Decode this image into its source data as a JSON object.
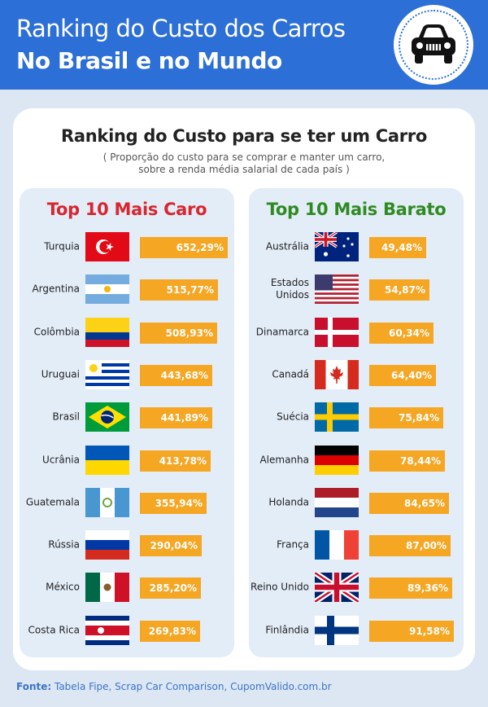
{
  "header": {
    "title_line1": "Ranking do Custo dos Carros",
    "title_line2": "No Brasil e no Mundo",
    "badge_icon": "car-front-icon"
  },
  "card": {
    "title": "Ranking do Custo para se ter um Carro",
    "subtitle_line1": "( Proporção do custo para se comprar e manter um carro,",
    "subtitle_line2": "sobre a renda média salarial de cada país )"
  },
  "chart_data": [
    {
      "type": "bar",
      "title": "Top 10 Mais Caro",
      "title_color": "#d7262f",
      "bar_color": "#f5a623",
      "categories": [
        "Turquia",
        "Argentina",
        "Colômbia",
        "Uruguai",
        "Brasil",
        "Ucrânia",
        "Guatemala",
        "Rússia",
        "México",
        "Costa Rica"
      ],
      "values": [
        652.29,
        515.77,
        508.93,
        443.68,
        441.89,
        413.78,
        355.94,
        290.04,
        285.2,
        269.83
      ],
      "labels": [
        "652,29%",
        "515,77%",
        "508,93%",
        "443,68%",
        "441,89%",
        "413,78%",
        "355,94%",
        "290,04%",
        "285,20%",
        "269,83%"
      ],
      "flags": [
        "turkey-flag-icon",
        "argentina-flag-icon",
        "colombia-flag-icon",
        "uruguay-flag-icon",
        "brazil-flag-icon",
        "ukraine-flag-icon",
        "guatemala-flag-icon",
        "russia-flag-icon",
        "mexico-flag-icon",
        "costa-rica-flag-icon"
      ]
    },
    {
      "type": "bar",
      "title": "Top 10 Mais Barato",
      "title_color": "#2f8a22",
      "bar_color": "#f5a623",
      "categories": [
        "Austrália",
        "Estados Unidos",
        "Dinamarca",
        "Canadá",
        "Suécia",
        "Alemanha",
        "Holanda",
        "França",
        "Reino Unido",
        "Finlândia"
      ],
      "values": [
        49.48,
        54.87,
        60.34,
        64.4,
        75.84,
        78.44,
        84.65,
        87.0,
        89.36,
        91.58
      ],
      "labels": [
        "49,48%",
        "54,87%",
        "60,34%",
        "64,40%",
        "75,84%",
        "78,44%",
        "84,65%",
        "87,00%",
        "89,36%",
        "91,58%"
      ],
      "flags": [
        "australia-flag-icon",
        "usa-flag-icon",
        "denmark-flag-icon",
        "canada-flag-icon",
        "sweden-flag-icon",
        "germany-flag-icon",
        "netherlands-flag-icon",
        "france-flag-icon",
        "uk-flag-icon",
        "finland-flag-icon"
      ]
    }
  ],
  "footer": {
    "label": "Fonte:",
    "text": " Tabela Fipe, Scrap Car Comparison, CupomValido.com.br"
  }
}
